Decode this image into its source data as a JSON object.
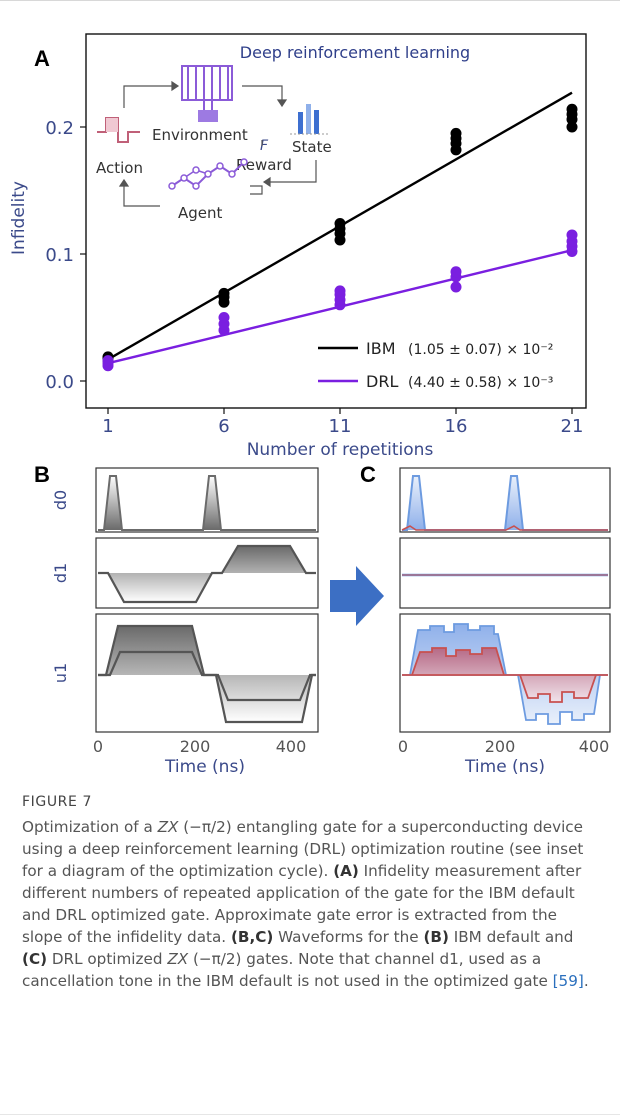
{
  "panel_labels": {
    "a": "A",
    "b": "B",
    "c": "C"
  },
  "inset": {
    "title": "Deep reinforcement learning",
    "labels": {
      "environment": "Environment",
      "action": "Action",
      "state": "State",
      "reward": "Reward",
      "agent": "Agent",
      "f": "F"
    }
  },
  "colors": {
    "ibm": "#000000",
    "drl": "#7a1fe0",
    "axis_text": "#3b4a8a",
    "wave_blue": "#6d9be0",
    "wave_red": "#c8504f",
    "arrow_blue": "#3c6fc4"
  },
  "chart_data": [
    {
      "type": "scatter",
      "title": "",
      "xlabel": "Number of repetitions",
      "ylabel": "Infidelity",
      "x_ticks": [
        "1",
        "6",
        "11",
        "16",
        "21"
      ],
      "y_ticks": [
        "0.0",
        "0.1",
        "0.2"
      ],
      "xlim": [
        0,
        23
      ],
      "ylim": [
        -0.01,
        0.25
      ],
      "series": [
        {
          "name": "IBM",
          "legend_value": "(1.05 ± 0.07) × 10⁻²",
          "color": "#000000",
          "points": [
            [
              1,
              0.016
            ],
            [
              1,
              0.018
            ],
            [
              1,
              0.019
            ],
            [
              6,
              0.062
            ],
            [
              6,
              0.066
            ],
            [
              6,
              0.069
            ],
            [
              11,
              0.111
            ],
            [
              11,
              0.116
            ],
            [
              11,
              0.12
            ],
            [
              11,
              0.124
            ],
            [
              16,
              0.182
            ],
            [
              16,
              0.187
            ],
            [
              16,
              0.191
            ],
            [
              16,
              0.195
            ],
            [
              21,
              0.2
            ],
            [
              21,
              0.206
            ],
            [
              21,
              0.21
            ],
            [
              21,
              0.214
            ]
          ],
          "fit": [
            [
              1,
              0.017
            ],
            [
              21,
              0.227
            ]
          ]
        },
        {
          "name": "DRL",
          "legend_value": "(4.40 ± 0.58) × 10⁻³",
          "color": "#7a1fe0",
          "points": [
            [
              1,
              0.012
            ],
            [
              1,
              0.014
            ],
            [
              1,
              0.016
            ],
            [
              6,
              0.04
            ],
            [
              6,
              0.045
            ],
            [
              6,
              0.05
            ],
            [
              11,
              0.06
            ],
            [
              11,
              0.064
            ],
            [
              11,
              0.068
            ],
            [
              11,
              0.071
            ],
            [
              16,
              0.074
            ],
            [
              16,
              0.082
            ],
            [
              16,
              0.086
            ],
            [
              21,
              0.102
            ],
            [
              21,
              0.106
            ],
            [
              21,
              0.11
            ],
            [
              21,
              0.115
            ]
          ],
          "fit": [
            [
              1,
              0.014
            ],
            [
              21,
              0.103
            ]
          ]
        }
      ],
      "legend": "bottom-right"
    },
    {
      "type": "line",
      "title": "",
      "xlabel": "Time (ns)",
      "x_ticks": [
        "0",
        "200",
        "400"
      ],
      "xlim": [
        0,
        460
      ],
      "channels": [
        "d0",
        "d1",
        "u1"
      ],
      "panel": "B",
      "series": [
        {
          "name": "d0",
          "values_note": "two narrow pulses at 25 ns and 255 ns"
        },
        {
          "name": "d1",
          "values_note": "negative plateau 30–205 ns, positive plateau 255–420 ns"
        },
        {
          "name": "u1",
          "values_note": "positive plateau 25–210 ns, negative plateau 250–440 ns"
        }
      ]
    },
    {
      "type": "line",
      "title": "",
      "xlabel": "Time (ns)",
      "x_ticks": [
        "0",
        "200",
        "400"
      ],
      "xlim": [
        0,
        460
      ],
      "panel": "C",
      "series": [
        {
          "name": "d0",
          "values_note": "two narrow pulses at 25 ns and 255 ns"
        },
        {
          "name": "d1",
          "values_note": "flat, unused"
        },
        {
          "name": "u1",
          "values_note": "stepped positive plateau 25–210 ns, stepped negative plateau 250–440 ns"
        }
      ]
    }
  ],
  "caption": {
    "label": "FIGURE 7",
    "t1": "Optimization of a ",
    "zx": "ZX",
    "t2": " (−π/2) entangling gate for a superconducting device using a deep reinforcement learning (DRL) optimization routine (see inset for a diagram of the optimization cycle). ",
    "bA": "(A)",
    "t3": " Infidelity measurement after different numbers of repeated application of the gate for the IBM default and DRL optimized gate. Approximate gate error is extracted from the slope of the infidelity data. ",
    "bBC": "(B,C)",
    "t4": " Waveforms for the ",
    "bB": "(B)",
    "t5": " IBM default and ",
    "bC": "(C)",
    "t6": " DRL optimized ",
    "zx2": "ZX",
    "t7": " (−π/2) gates. Note that channel d1, used as a cancellation tone in the IBM default is not used in the optimized gate ",
    "cite": "[59]",
    "t8": "."
  }
}
